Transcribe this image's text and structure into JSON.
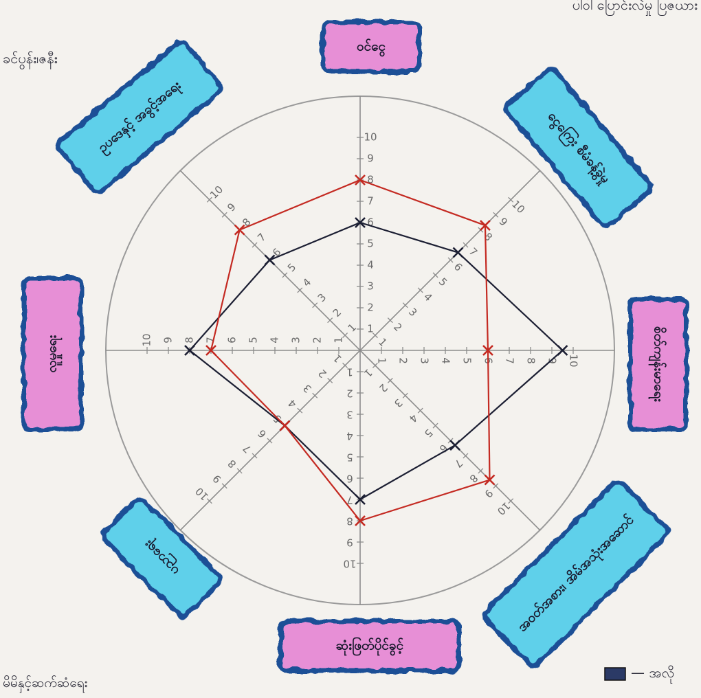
{
  "colors": {
    "paper": "#f4f2ee",
    "outer_circle": "#9a9a9a",
    "axis": "#8c8c8c",
    "tick_text": "#6a6a6a",
    "series_black": "#1c1f33",
    "series_red": "#c42a22",
    "label_pink": "#e78fd6",
    "label_blue": "#5fd0ea",
    "label_border": "#1f4f96",
    "handwriting": "#2b2b38"
  },
  "page_text": {
    "top_right": "ပါဝါ ပြောင်းလဲမှု ပြဇယား",
    "top_left": "ခင်ပွန်း၊ဇနီး",
    "bottom_left": "မိမိနှင့်ဆက်ဆံရေး",
    "bottom_right": "— အလို"
  },
  "legend_marker": "dark-box",
  "chart_data": {
    "type": "radar",
    "title": "",
    "scale_min": 0,
    "scale_max": 10,
    "tick_labels": [
      "1",
      "2",
      "3",
      "4",
      "5",
      "6",
      "7",
      "8",
      "9",
      "10"
    ],
    "axes": [
      {
        "label": "ဝင်ငွေ",
        "style": "pink"
      },
      {
        "label": "ငွေကြေး စီမံခန့်ခွဲမှု",
        "style": "blue"
      },
      {
        "label": "စိတ်ကျန်းမာရေး",
        "style": "pink"
      },
      {
        "label": "အဝတ်အစား၊ အိမ်အသုံးအဆောင်",
        "style": "blue"
      },
      {
        "label": "ဆုံးဖြတ်ပိုင်ခွင့်",
        "style": "pink"
      },
      {
        "label": "ပညာရေး",
        "style": "blue"
      },
      {
        "label": "လူမှုရေး",
        "style": "pink"
      },
      {
        "label": "ဥပဒေနှင့် အခွင့်အရေး",
        "style": "blue"
      }
    ],
    "series": [
      {
        "color": "#1c1f33",
        "values": [
          6,
          6.5,
          9.5,
          6.3,
          7,
          5,
          8,
          6
        ]
      },
      {
        "color": "#c42a22",
        "values": [
          8,
          8.3,
          6,
          8.6,
          8,
          5,
          7,
          8
        ]
      }
    ],
    "grid": false,
    "outer_circle": true
  }
}
